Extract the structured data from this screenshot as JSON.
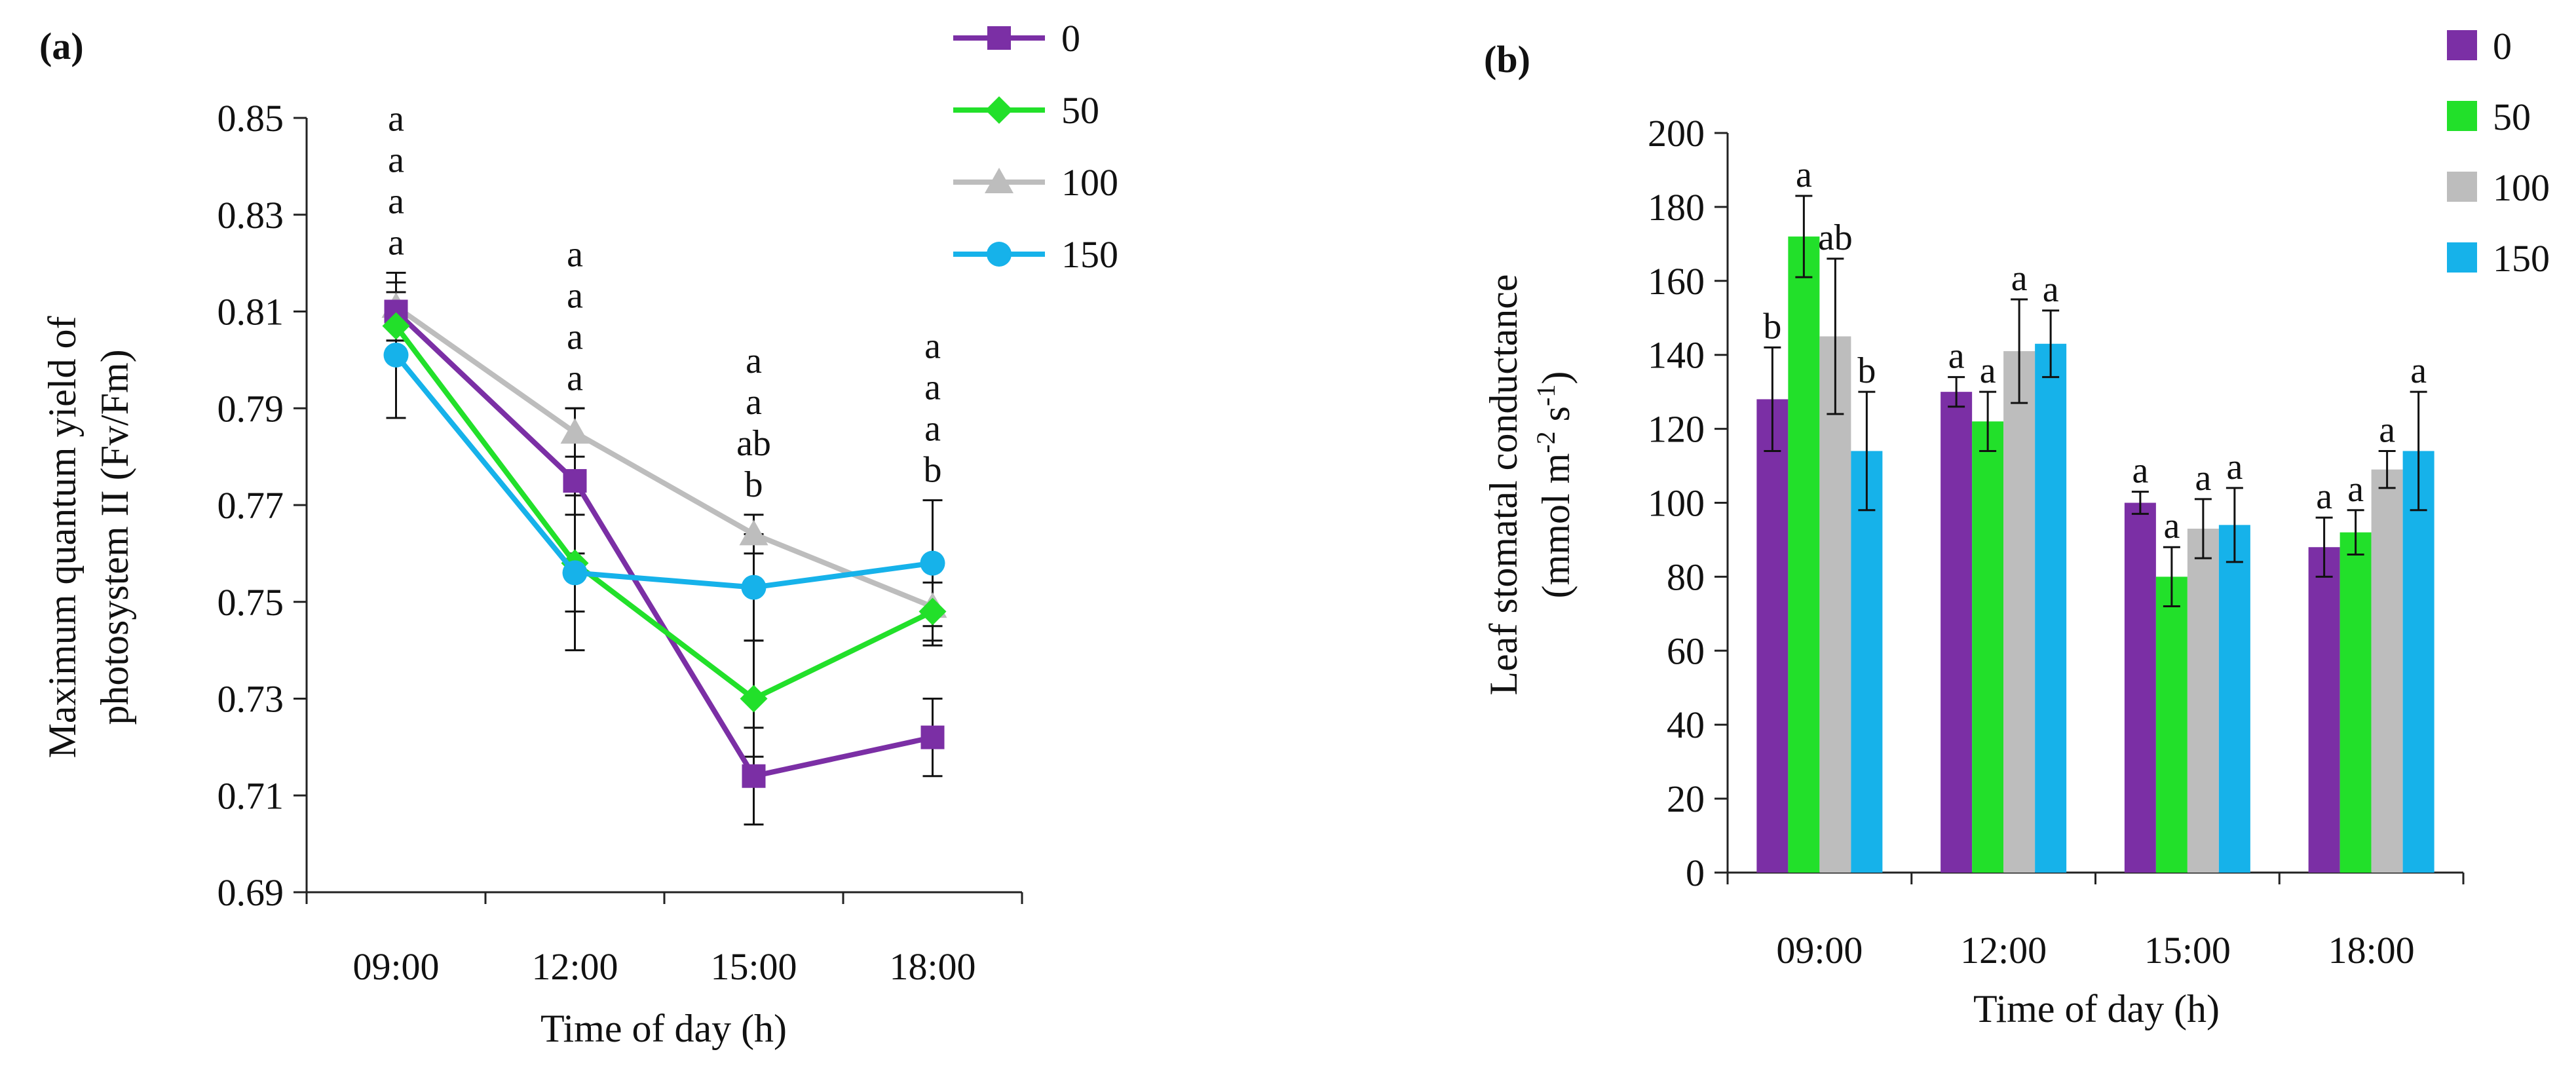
{
  "chart_data": [
    {
      "panel_label": "(a)",
      "type": "line",
      "categories": [
        "09:00",
        "12:00",
        "15:00",
        "18:00"
      ],
      "xlabel": "Time of day (h)",
      "ylabel_line1": "Maximum quantum yield of",
      "ylabel_line2": "photosystem II  (Fv/Fm)",
      "ylim": [
        0.69,
        0.85
      ],
      "yticks": [
        0.69,
        0.71,
        0.73,
        0.75,
        0.77,
        0.79,
        0.81,
        0.83,
        0.85
      ],
      "ytick_labels": [
        "0.69",
        "0.71",
        "0.73",
        "0.75",
        "0.77",
        "0.79",
        "0.81",
        "0.83",
        "0.85"
      ],
      "legend_position": "top-right",
      "series": [
        {
          "name": "0",
          "color": "#7b2fa5",
          "marker": "square",
          "values": [
            0.81,
            0.775,
            0.714,
            0.722
          ],
          "errors": [
            0.006,
            0.015,
            0.01,
            0.008
          ]
        },
        {
          "name": "50",
          "color": "#22e02a",
          "marker": "diamond",
          "values": [
            0.807,
            0.758,
            0.73,
            0.748
          ],
          "errors": [
            0.005,
            0.01,
            0.012,
            0.006
          ]
        },
        {
          "name": "100",
          "color": "#bdbdbd",
          "marker": "triangle",
          "values": [
            0.811,
            0.785,
            0.764,
            0.749
          ],
          "errors": [
            0.007,
            0.005,
            0.004,
            0.008
          ]
        },
        {
          "name": "150",
          "color": "#16b2ea",
          "marker": "circle",
          "values": [
            0.801,
            0.756,
            0.753,
            0.758
          ],
          "errors": [
            0.013,
            0.016,
            0.011,
            0.013
          ]
        }
      ],
      "significance_letters": [
        [
          "a",
          "a",
          "a",
          "a"
        ],
        [
          "a",
          "a",
          "a",
          "a"
        ],
        [
          "a",
          "a",
          "ab",
          "b"
        ],
        [
          "a",
          "a",
          "a",
          "b"
        ]
      ]
    },
    {
      "panel_label": "(b)",
      "type": "bar",
      "categories": [
        "09:00",
        "12:00",
        "15:00",
        "18:00"
      ],
      "xlabel": "Time of day (h)",
      "ylabel_line1": "Leaf stomatal conductance",
      "ylabel_line2": "(mmol m-2 s-1)",
      "ylabel_unit_prefix": "(mmol m",
      "ylabel_unit_exp1": "-2",
      "ylabel_unit_mid": " s",
      "ylabel_unit_exp2": "-1",
      "ylabel_unit_suffix": ")",
      "ylim": [
        0,
        200
      ],
      "yticks": [
        0,
        20,
        40,
        60,
        80,
        100,
        120,
        140,
        160,
        180,
        200
      ],
      "ytick_labels": [
        "0",
        "20",
        "40",
        "60",
        "80",
        "100",
        "120",
        "140",
        "160",
        "180",
        "200"
      ],
      "legend_position": "top-right",
      "series": [
        {
          "name": "0",
          "color": "#7b2fa5",
          "values": [
            128,
            130,
            100,
            88
          ],
          "errors": [
            14,
            4,
            3,
            8
          ],
          "letters": [
            "b",
            "a",
            "a",
            "a"
          ]
        },
        {
          "name": "50",
          "color": "#22e02a",
          "values": [
            172,
            122,
            80,
            92
          ],
          "errors": [
            11,
            8,
            8,
            6
          ],
          "letters": [
            "a",
            "a",
            "a",
            "a"
          ]
        },
        {
          "name": "100",
          "color": "#bdbdbd",
          "values": [
            145,
            141,
            93,
            109
          ],
          "errors": [
            21,
            14,
            8,
            5
          ],
          "letters": [
            "ab",
            "a",
            "a",
            "a"
          ]
        },
        {
          "name": "150",
          "color": "#16b2ea",
          "values": [
            114,
            143,
            94,
            114
          ],
          "errors": [
            16,
            9,
            10,
            16
          ],
          "letters": [
            "b",
            "a",
            "a",
            "a"
          ]
        }
      ]
    }
  ]
}
